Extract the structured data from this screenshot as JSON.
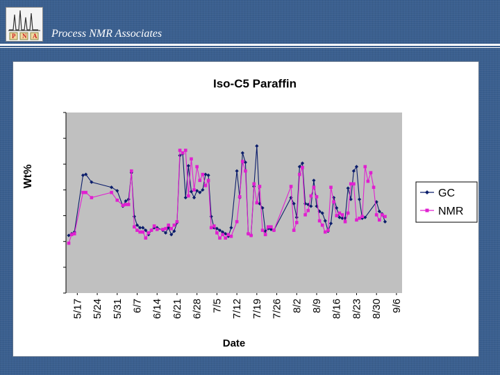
{
  "header": {
    "title": "Process NMR Associates",
    "logo": {
      "icon": "nmr-spectrum-logo-icon",
      "letters": [
        "P",
        "N",
        "A"
      ]
    }
  },
  "colors": {
    "background": "#3a5f8f",
    "plot_area": "#c0c0c0",
    "gc": "#0b1d6b",
    "nmr": "#e020d0"
  },
  "chart_data": {
    "type": "line",
    "title": "Iso-C5 Paraffin",
    "xlabel": "Date",
    "ylabel": "Wt%",
    "x_ticks": [
      "5/17",
      "5/24",
      "5/31",
      "6/7",
      "6/14",
      "6/21",
      "6/28",
      "7/5",
      "7/12",
      "7/19",
      "7/26",
      "8/2",
      "8/9",
      "8/16",
      "8/23",
      "8/30",
      "9/6"
    ],
    "xlim": [
      0,
      116
    ],
    "ylim": [
      0,
      42
    ],
    "grid": false,
    "legend": "right",
    "series": [
      {
        "name": "GC",
        "marker": "diamond",
        "points": [
          [
            0,
            13.4
          ],
          [
            1,
            13.8
          ],
          [
            2,
            14.2
          ],
          [
            5,
            27.4
          ],
          [
            6,
            27.6
          ],
          [
            8,
            25.8
          ],
          [
            15,
            24.6
          ],
          [
            17,
            23.8
          ],
          [
            19,
            20.2
          ],
          [
            20,
            21.4
          ],
          [
            21,
            21.8
          ],
          [
            22,
            28.0
          ],
          [
            23,
            17.8
          ],
          [
            24,
            15.8
          ],
          [
            25,
            15.2
          ],
          [
            26,
            15.2
          ],
          [
            27,
            14.6
          ],
          [
            28,
            13.6
          ],
          [
            29,
            14.6
          ],
          [
            30,
            15.2
          ],
          [
            31,
            15.2
          ],
          [
            33,
            14.6
          ],
          [
            34,
            14.0
          ],
          [
            35,
            15.2
          ],
          [
            36,
            13.6
          ],
          [
            37,
            14.4
          ],
          [
            38,
            16.4
          ],
          [
            39,
            32.0
          ],
          [
            40,
            32.4
          ],
          [
            41,
            22.2
          ],
          [
            42,
            29.6
          ],
          [
            43,
            23.6
          ],
          [
            44,
            22.2
          ],
          [
            45,
            23.8
          ],
          [
            46,
            23.4
          ],
          [
            47,
            24.0
          ],
          [
            48,
            27.6
          ],
          [
            49,
            27.4
          ],
          [
            50,
            17.8
          ],
          [
            51,
            15.2
          ],
          [
            52,
            15.0
          ],
          [
            53,
            14.6
          ],
          [
            54,
            14.2
          ],
          [
            55,
            13.8
          ],
          [
            56,
            13.2
          ],
          [
            57,
            15.2
          ],
          [
            59,
            28.4
          ],
          [
            60,
            22.2
          ],
          [
            61,
            32.6
          ],
          [
            62,
            30.4
          ],
          [
            63,
            13.8
          ],
          [
            64,
            13.4
          ],
          [
            65,
            24.8
          ],
          [
            66,
            34.2
          ],
          [
            67,
            20.8
          ],
          [
            68,
            19.8
          ],
          [
            69,
            14.4
          ],
          [
            70,
            15.0
          ],
          [
            71,
            14.8
          ],
          [
            72,
            14.6
          ],
          [
            78,
            22.2
          ],
          [
            79,
            20.8
          ],
          [
            80,
            17.6
          ],
          [
            81,
            29.4
          ],
          [
            82,
            30.2
          ],
          [
            83,
            20.8
          ],
          [
            84,
            20.6
          ],
          [
            85,
            20.2
          ],
          [
            86,
            26.2
          ],
          [
            87,
            20.2
          ],
          [
            88,
            19.0
          ],
          [
            89,
            18.6
          ],
          [
            90,
            16.8
          ],
          [
            91,
            14.4
          ],
          [
            92,
            16.2
          ],
          [
            93,
            22.2
          ],
          [
            94,
            19.8
          ],
          [
            95,
            17.6
          ],
          [
            96,
            17.4
          ],
          [
            97,
            17.4
          ],
          [
            98,
            24.4
          ],
          [
            99,
            21.8
          ],
          [
            100,
            28.4
          ],
          [
            101,
            29.4
          ],
          [
            102,
            21.8
          ],
          [
            103,
            17.4
          ],
          [
            104,
            17.6
          ],
          [
            108,
            21.2
          ],
          [
            109,
            19.0
          ],
          [
            110,
            18.4
          ],
          [
            111,
            16.6
          ]
        ]
      },
      {
        "name": "NMR",
        "marker": "square",
        "points": [
          [
            0,
            11.6
          ],
          [
            1,
            13.6
          ],
          [
            2,
            13.8
          ],
          [
            5,
            23.4
          ],
          [
            6,
            23.4
          ],
          [
            8,
            22.2
          ],
          [
            15,
            23.4
          ],
          [
            17,
            21.6
          ],
          [
            19,
            20.4
          ],
          [
            20,
            20.6
          ],
          [
            21,
            20.6
          ],
          [
            22,
            28.4
          ],
          [
            23,
            15.4
          ],
          [
            24,
            14.6
          ],
          [
            25,
            14.2
          ],
          [
            26,
            14.2
          ],
          [
            27,
            12.8
          ],
          [
            28,
            14.0
          ],
          [
            29,
            14.6
          ],
          [
            30,
            15.6
          ],
          [
            31,
            14.8
          ],
          [
            33,
            14.8
          ],
          [
            34,
            15.0
          ],
          [
            35,
            15.8
          ],
          [
            36,
            15.0
          ],
          [
            37,
            15.8
          ],
          [
            38,
            16.6
          ],
          [
            39,
            33.2
          ],
          [
            40,
            32.6
          ],
          [
            41,
            33.2
          ],
          [
            42,
            22.6
          ],
          [
            43,
            31.2
          ],
          [
            44,
            24.0
          ],
          [
            45,
            29.4
          ],
          [
            46,
            26.2
          ],
          [
            47,
            27.6
          ],
          [
            48,
            25.0
          ],
          [
            49,
            26.2
          ],
          [
            50,
            15.2
          ],
          [
            51,
            15.6
          ],
          [
            52,
            14.0
          ],
          [
            53,
            12.8
          ],
          [
            54,
            13.6
          ],
          [
            55,
            12.8
          ],
          [
            56,
            13.6
          ],
          [
            57,
            13.2
          ],
          [
            59,
            16.6
          ],
          [
            60,
            22.4
          ],
          [
            61,
            30.6
          ],
          [
            62,
            28.4
          ],
          [
            63,
            13.8
          ],
          [
            64,
            13.4
          ],
          [
            65,
            25.4
          ],
          [
            66,
            21.0
          ],
          [
            67,
            24.8
          ],
          [
            68,
            14.6
          ],
          [
            69,
            13.6
          ],
          [
            70,
            15.4
          ],
          [
            71,
            15.4
          ],
          [
            72,
            14.6
          ],
          [
            78,
            24.8
          ],
          [
            79,
            14.6
          ],
          [
            80,
            16.4
          ],
          [
            81,
            27.6
          ],
          [
            82,
            29.2
          ],
          [
            83,
            18.2
          ],
          [
            84,
            19.2
          ],
          [
            85,
            22.6
          ],
          [
            86,
            24.6
          ],
          [
            87,
            22.4
          ],
          [
            88,
            16.8
          ],
          [
            89,
            15.8
          ],
          [
            90,
            14.2
          ],
          [
            91,
            14.6
          ],
          [
            92,
            24.6
          ],
          [
            93,
            21.2
          ],
          [
            94,
            18.0
          ],
          [
            95,
            18.6
          ],
          [
            96,
            18.2
          ],
          [
            97,
            16.6
          ],
          [
            98,
            18.6
          ],
          [
            99,
            25.4
          ],
          [
            100,
            25.4
          ],
          [
            101,
            17.0
          ],
          [
            102,
            17.4
          ],
          [
            103,
            17.8
          ],
          [
            104,
            29.4
          ],
          [
            105,
            26.0
          ],
          [
            106,
            28.0
          ],
          [
            107,
            24.6
          ],
          [
            108,
            18.2
          ],
          [
            109,
            17.0
          ],
          [
            110,
            18.2
          ],
          [
            111,
            17.8
          ]
        ]
      }
    ]
  }
}
